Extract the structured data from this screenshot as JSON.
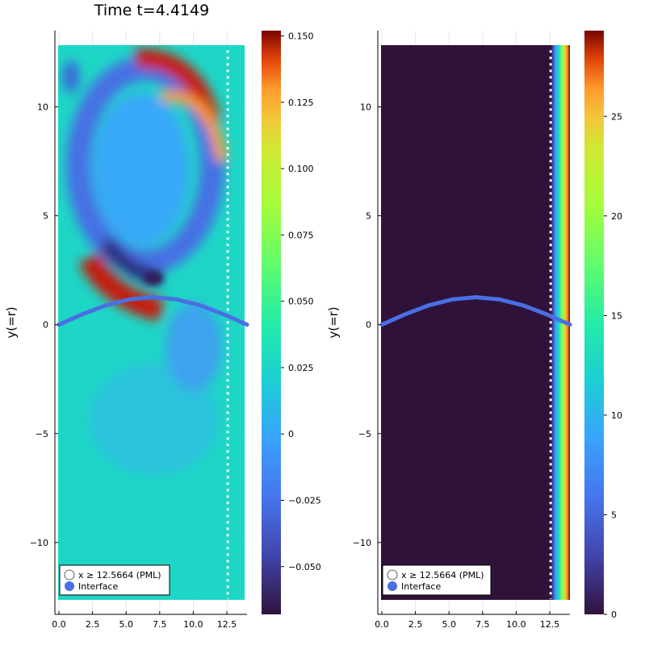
{
  "figure": {
    "title": "Time t=4.4149"
  },
  "chart_data": [
    {
      "type": "scatter",
      "title": "Time t=4.4149",
      "xlabel": "",
      "ylabel": "y(=r)",
      "xlim": [
        -0.3,
        14.0
      ],
      "ylim": [
        -13.3,
        13.5
      ],
      "xticks": [
        0,
        2.5,
        5,
        7.5,
        10,
        12.5
      ],
      "xtick_labels": [
        "0.0",
        "2.5",
        "5.0",
        "7.5",
        "10.0",
        "12.5"
      ],
      "yticks": [
        -10,
        -5,
        0,
        5,
        10
      ],
      "ytick_labels": [
        "−10",
        "−5",
        "0",
        "5",
        "10"
      ],
      "grid": true,
      "field_extent": {
        "x": [
          0,
          14
        ],
        "y": [
          -12.6,
          12.6
        ]
      },
      "pml_line_x": 12.5664,
      "colorbar": {
        "colormap": "turbo",
        "range": [
          -0.068,
          0.152
        ],
        "ticks": [
          -0.05,
          -0.025,
          0,
          0.025,
          0.05,
          0.075,
          0.1,
          0.125,
          0.15
        ],
        "tick_labels": [
          "−0.050",
          "−0.025",
          "0",
          "0.025",
          "0.050",
          "0.075",
          "0.100",
          "0.125",
          "0.150"
        ]
      },
      "interface": {
        "x": [
          0,
          1.75,
          3.5,
          5.25,
          7.0,
          8.75,
          10.5,
          12.25,
          14.0
        ],
        "y": [
          0,
          0.48,
          0.89,
          1.16,
          1.26,
          1.16,
          0.89,
          0.48,
          0
        ]
      },
      "legend": {
        "placement": "bottom-left",
        "entries": [
          "x ≥ 12.5664 (PML)",
          "Interface"
        ]
      }
    },
    {
      "type": "scatter",
      "title": "",
      "xlabel": "",
      "ylabel": "y(=r)",
      "xlim": [
        -0.3,
        14.0
      ],
      "ylim": [
        -13.3,
        13.5
      ],
      "xticks": [
        0,
        2.5,
        5,
        7.5,
        10,
        12.5
      ],
      "xtick_labels": [
        "0.0",
        "2.5",
        "5.0",
        "7.5",
        "10.0",
        "12.5"
      ],
      "yticks": [
        -10,
        -5,
        0,
        5,
        10
      ],
      "ytick_labels": [
        "−10",
        "−5",
        "0",
        "5",
        "10"
      ],
      "grid": true,
      "field_extent": {
        "x": [
          0,
          14
        ],
        "y": [
          -12.6,
          12.6
        ]
      },
      "pml_line_x": 12.5664,
      "colorbar": {
        "colormap": "turbo",
        "range": [
          0,
          29.3
        ],
        "ticks": [
          0,
          5,
          10,
          15,
          20,
          25
        ],
        "tick_labels": [
          "0",
          "5",
          "10",
          "15",
          "20",
          "25"
        ]
      },
      "pml_profile": {
        "x_start": 12.5664,
        "x_end": 14.0,
        "value_start": 0,
        "value_end": 29.3,
        "background_value": 0
      },
      "interface": {
        "x": [
          0,
          1.75,
          3.5,
          5.25,
          7.0,
          8.75,
          10.5,
          12.25,
          14.0
        ],
        "y": [
          0,
          0.48,
          0.89,
          1.16,
          1.26,
          1.16,
          0.89,
          0.48,
          0
        ]
      },
      "legend": {
        "placement": "bottom-left",
        "entries": [
          "x ≥ 12.5664 (PML)",
          "Interface"
        ]
      }
    }
  ],
  "colors": {
    "interface": "#4a6fe3",
    "pml_line": "#ffffff",
    "axis": "#000000",
    "grid": "#e6e6e6"
  }
}
